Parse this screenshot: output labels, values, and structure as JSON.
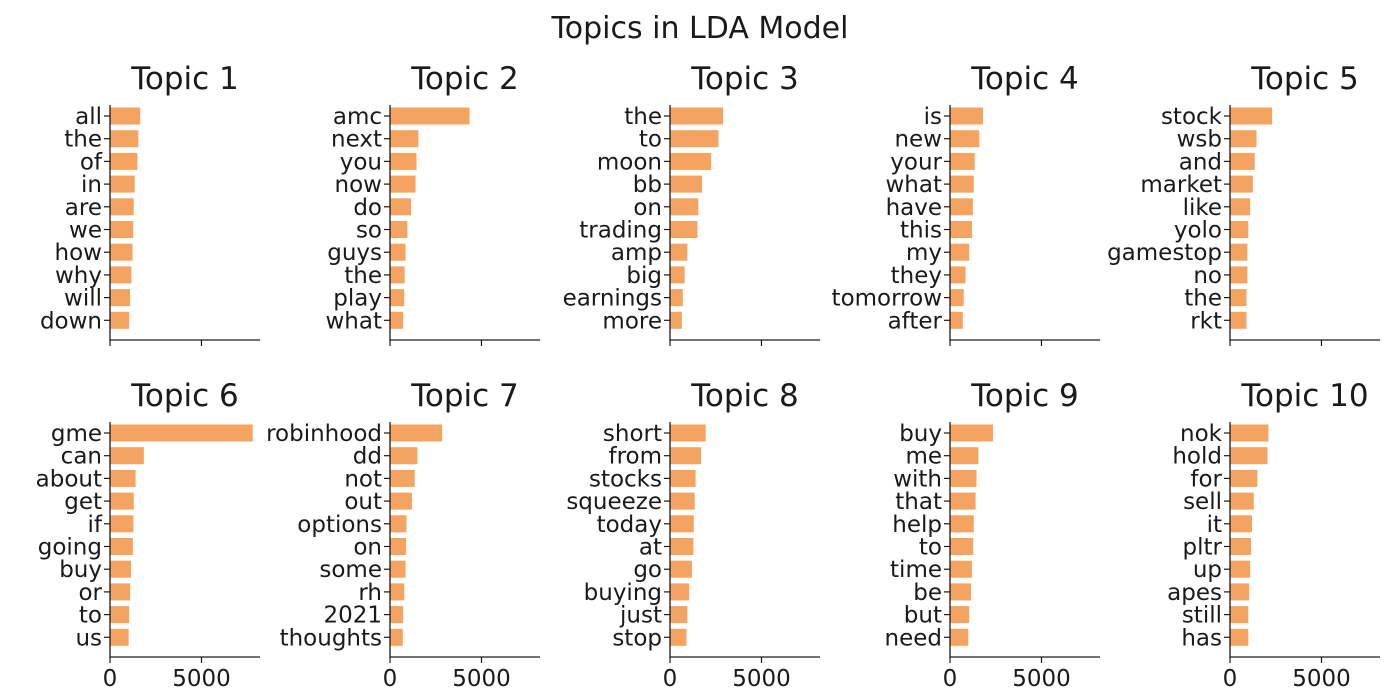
{
  "chart_data": {
    "type": "bar",
    "orientation": "horizontal",
    "title": "Topics in LDA Model",
    "bar_color": "#f4a460",
    "xlim": [
      0,
      8200
    ],
    "xticks": [
      0,
      5000
    ],
    "xtick_labels": [
      "0",
      "5000"
    ],
    "panels": [
      {
        "title": "Topic 1",
        "labels": [
          "all",
          "the",
          "of",
          "in",
          "are",
          "we",
          "how",
          "why",
          "will",
          "down"
        ],
        "values": [
          1650,
          1550,
          1500,
          1350,
          1300,
          1270,
          1230,
          1170,
          1100,
          1050
        ]
      },
      {
        "title": "Topic 2",
        "labels": [
          "amc",
          "next",
          "you",
          "now",
          "do",
          "so",
          "guys",
          "the",
          "play",
          "what"
        ],
        "values": [
          4350,
          1550,
          1450,
          1400,
          1150,
          950,
          850,
          800,
          780,
          720
        ]
      },
      {
        "title": "Topic 3",
        "labels": [
          "the",
          "to",
          "moon",
          "bb",
          "on",
          "trading",
          "amp",
          "big",
          "earnings",
          "more"
        ],
        "values": [
          2900,
          2650,
          2250,
          1750,
          1550,
          1500,
          950,
          800,
          700,
          650
        ]
      },
      {
        "title": "Topic 4",
        "labels": [
          "is",
          "new",
          "your",
          "what",
          "have",
          "this",
          "my",
          "they",
          "tomorrow",
          "after"
        ],
        "values": [
          1800,
          1600,
          1350,
          1300,
          1250,
          1200,
          1050,
          850,
          750,
          700
        ]
      },
      {
        "title": "Topic 5",
        "labels": [
          "stock",
          "wsb",
          "and",
          "market",
          "like",
          "yolo",
          "gamestop",
          "no",
          "the",
          "rkt"
        ],
        "values": [
          2300,
          1450,
          1350,
          1250,
          1100,
          1000,
          950,
          950,
          900,
          900
        ]
      },
      {
        "title": "Topic 6",
        "labels": [
          "gme",
          "can",
          "about",
          "get",
          "if",
          "going",
          "buy",
          "or",
          "to",
          "us"
        ],
        "values": [
          7800,
          1850,
          1400,
          1300,
          1280,
          1250,
          1150,
          1100,
          1050,
          1020
        ]
      },
      {
        "title": "Topic 7",
        "labels": [
          "robinhood",
          "dd",
          "not",
          "out",
          "options",
          "on",
          "some",
          "rh",
          "2021",
          "thoughts"
        ],
        "values": [
          2850,
          1500,
          1350,
          1200,
          900,
          880,
          850,
          780,
          720,
          700
        ]
      },
      {
        "title": "Topic 8",
        "labels": [
          "short",
          "from",
          "stocks",
          "squeeze",
          "today",
          "at",
          "go",
          "buying",
          "just",
          "stop"
        ],
        "values": [
          1950,
          1700,
          1400,
          1350,
          1300,
          1280,
          1200,
          1050,
          950,
          900
        ]
      },
      {
        "title": "Topic 9",
        "labels": [
          "buy",
          "me",
          "with",
          "that",
          "help",
          "to",
          "time",
          "be",
          "but",
          "need"
        ],
        "values": [
          2350,
          1550,
          1450,
          1400,
          1300,
          1270,
          1200,
          1150,
          1050,
          1000
        ]
      },
      {
        "title": "Topic 10",
        "labels": [
          "nok",
          "hold",
          "for",
          "sell",
          "it",
          "pltr",
          "up",
          "apes",
          "still",
          "has"
        ],
        "values": [
          2100,
          2050,
          1500,
          1300,
          1200,
          1150,
          1100,
          1050,
          1000,
          1000
        ]
      }
    ]
  }
}
